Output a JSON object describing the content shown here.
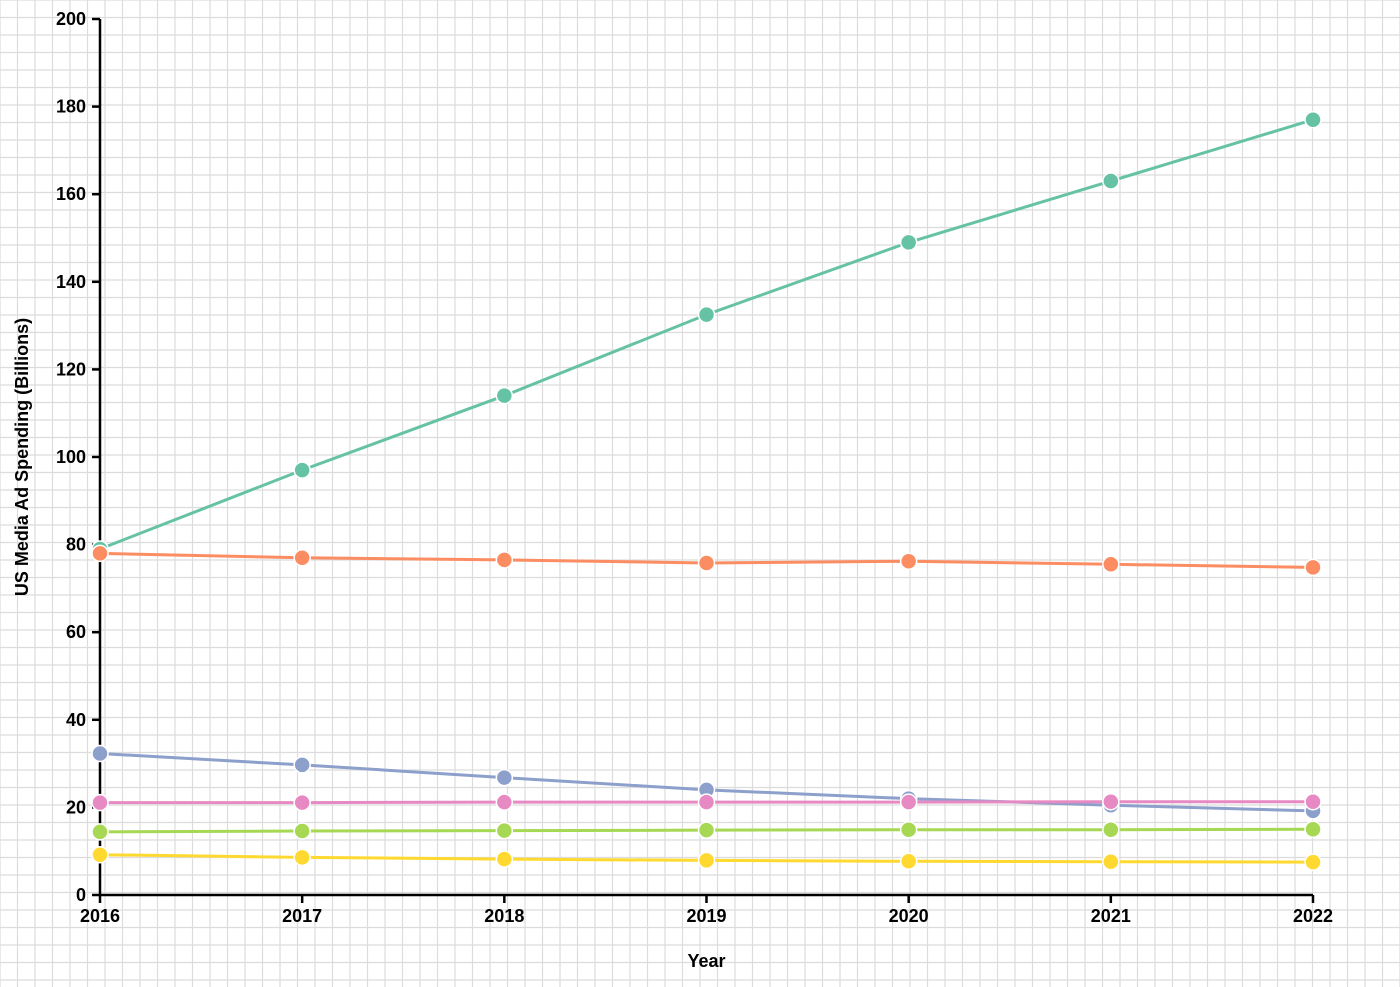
{
  "chart_data": {
    "type": "line",
    "title": "",
    "xlabel": "Year",
    "ylabel": "US Media Ad Spending (Billions)",
    "x": [
      2016,
      2017,
      2018,
      2019,
      2020,
      2021,
      2022
    ],
    "x_tick_labels": [
      "2016",
      "2017",
      "2018",
      "2019",
      "2020",
      "2021",
      "2022"
    ],
    "ylim": [
      0,
      200
    ],
    "y_ticks": [
      0,
      20,
      40,
      60,
      80,
      100,
      120,
      140,
      160,
      180,
      200
    ],
    "y_tick_labels": [
      "0",
      "20",
      "40",
      "60",
      "80",
      "100",
      "120",
      "140",
      "160",
      "180",
      "200"
    ],
    "grid": true,
    "legend": "none",
    "series": [
      {
        "color": "#66c2a5",
        "values": [
          79.0,
          97.0,
          114.0,
          132.5,
          149.0,
          163.0,
          177.0
        ]
      },
      {
        "color": "#fc8d62",
        "values": [
          78.0,
          77.0,
          76.5,
          75.8,
          76.2,
          75.5,
          74.8
        ]
      },
      {
        "color": "#8da0cb",
        "values": [
          32.3,
          29.7,
          26.8,
          24.0,
          22.0,
          20.5,
          19.2
        ]
      },
      {
        "color": "#e78ac3",
        "values": [
          21.1,
          21.1,
          21.2,
          21.2,
          21.2,
          21.3,
          21.3
        ]
      },
      {
        "color": "#a6d854",
        "values": [
          14.4,
          14.6,
          14.7,
          14.8,
          14.9,
          14.9,
          15.0
        ]
      },
      {
        "color": "#ffd92f",
        "values": [
          9.2,
          8.6,
          8.2,
          7.9,
          7.7,
          7.6,
          7.5
        ]
      }
    ]
  }
}
